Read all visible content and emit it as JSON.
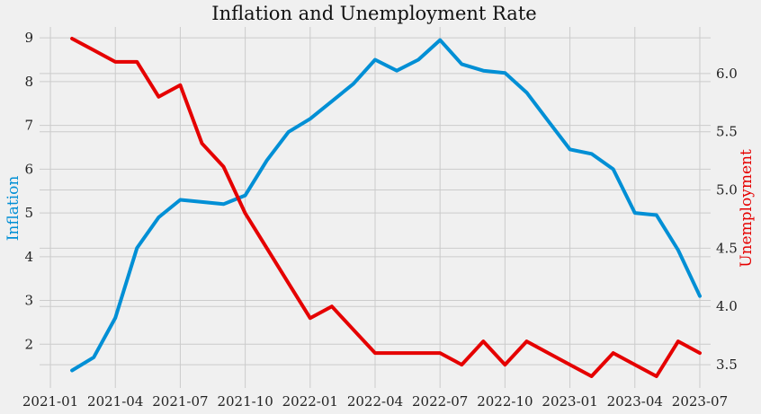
{
  "chart_data": {
    "type": "line",
    "title": "Inflation and Unemployment Rate",
    "xlabel": "",
    "x": [
      "2021-02",
      "2021-03",
      "2021-04",
      "2021-05",
      "2021-06",
      "2021-07",
      "2021-08",
      "2021-09",
      "2021-10",
      "2021-11",
      "2021-12",
      "2022-01",
      "2022-02",
      "2022-03",
      "2022-04",
      "2022-05",
      "2022-06",
      "2022-07",
      "2022-08",
      "2022-09",
      "2022-10",
      "2022-11",
      "2022-12",
      "2023-01",
      "2023-02",
      "2023-03",
      "2023-04",
      "2023-05",
      "2023-06",
      "2023-07"
    ],
    "x_ticks": [
      "2021-01",
      "2021-04",
      "2021-07",
      "2021-10",
      "2022-01",
      "2022-04",
      "2022-07",
      "2022-10",
      "2023-01",
      "2023-04",
      "2023-07"
    ],
    "series": [
      {
        "name": "Inflation",
        "axis": "left",
        "color": "#008fd5",
        "values": [
          1.4,
          1.7,
          2.6,
          4.2,
          4.9,
          5.3,
          5.25,
          5.2,
          5.4,
          6.2,
          6.85,
          7.15,
          7.55,
          7.95,
          8.5,
          8.25,
          8.5,
          8.95,
          8.4,
          8.25,
          8.2,
          7.75,
          7.1,
          6.45,
          6.35,
          6.0,
          5.0,
          4.95,
          4.15,
          3.1
        ]
      },
      {
        "name": "Unemployment",
        "axis": "right",
        "color": "#e50000",
        "values": [
          6.3,
          6.2,
          6.1,
          6.1,
          5.8,
          5.9,
          5.4,
          5.2,
          4.8,
          4.5,
          4.2,
          3.9,
          4.0,
          3.8,
          3.6,
          3.6,
          3.6,
          3.6,
          3.5,
          3.7,
          3.5,
          3.7,
          3.6,
          3.5,
          3.4,
          3.6,
          3.5,
          3.4,
          3.7,
          3.6
        ]
      }
    ],
    "y_left": {
      "label": "Inflation",
      "ticks": [
        2,
        3,
        4,
        5,
        6,
        7,
        8,
        9
      ],
      "ylim": [
        1.0,
        9.25
      ]
    },
    "y_right": {
      "label": "Unemployment",
      "ticks": [
        3.5,
        4.0,
        4.5,
        5.0,
        5.5,
        6.0
      ],
      "ylim": [
        3.3,
        6.4
      ]
    },
    "grid": true
  }
}
